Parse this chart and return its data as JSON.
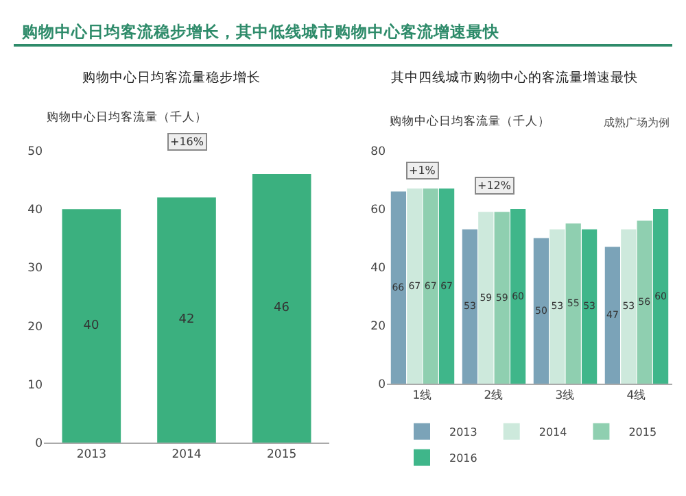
{
  "chart_data": [
    {
      "type": "bar",
      "title": "购物中心日均客流量稳步增长",
      "ylabel": "购物中心日均客流量（千人）",
      "categories": [
        "2013",
        "2014",
        "2015"
      ],
      "values": [
        40,
        42,
        46
      ],
      "color": "#3bb07f",
      "ylim": [
        0,
        50
      ],
      "yticks": [
        0,
        10,
        20,
        30,
        40,
        50
      ],
      "grid": false,
      "legend": false,
      "data_labels": true,
      "annotations": [
        "购物中心日均客流稳步增长，其中低线城市购物中心客流增速最快",
        "+16%"
      ]
    },
    {
      "type": "bar",
      "title": "其中四线城市购物中心的客流量增速最快",
      "ylabel": "购物中心日均客流量（千人）",
      "categories": [
        "1线",
        "2线",
        "3线",
        "4线"
      ],
      "series": [
        {
          "name": "2013",
          "color": "#7ba3b8",
          "values": [
            66,
            53,
            50,
            47
          ]
        },
        {
          "name": "2014",
          "color": "#cde9dc",
          "values": [
            67,
            59,
            53,
            53
          ]
        },
        {
          "name": "2015",
          "color": "#8fcfb0",
          "values": [
            67,
            59,
            55,
            56
          ]
        },
        {
          "name": "2016",
          "color": "#3fb68a",
          "values": [
            67,
            60,
            53,
            60
          ]
        }
      ],
      "ylim": [
        0,
        80
      ],
      "yticks": [
        0,
        20,
        40,
        60,
        80
      ],
      "grid": false,
      "legend": "bottom",
      "data_labels": true,
      "annotations": [
        "成熟广场为例",
        {
          "text": "+1%",
          "x": "1线",
          "y": 73
        },
        {
          "text": "+12%",
          "x": "2线",
          "y": 68
        }
      ]
    }
  ]
}
